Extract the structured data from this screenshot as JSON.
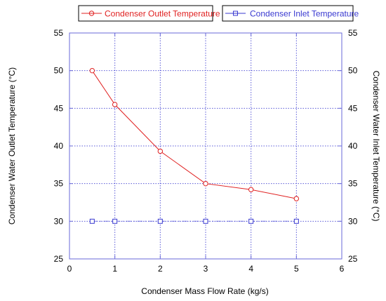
{
  "chart_data": {
    "type": "line",
    "x": [
      0.5,
      1,
      2,
      3,
      4,
      5
    ],
    "series": [
      {
        "name": "Condenser Outlet Temperature",
        "color": "#e02020",
        "marker": "circle",
        "axis": "left",
        "values": [
          50.0,
          45.5,
          39.3,
          35.0,
          34.2,
          33.0
        ]
      },
      {
        "name": "Condenser Inlet Temperature",
        "color": "#3838d0",
        "marker": "square",
        "axis": "right",
        "line_style": "dash-dot",
        "values": [
          30,
          30,
          30,
          30,
          30,
          30
        ]
      }
    ],
    "xlabel": "Condenser Mass Flow Rate (kg/s)",
    "ylabel_left": "Condenser Water Outlet Temperature (°C)",
    "ylabel_right": "Condenser Water Inlet Temperature (°C)",
    "xlim": [
      0,
      6
    ],
    "ylim_left": [
      25,
      55
    ],
    "ylim_right": [
      25,
      55
    ],
    "xticks": [
      "0",
      "1",
      "2",
      "3",
      "4",
      "5",
      "6"
    ],
    "yticks_left": [
      "25",
      "30",
      "35",
      "40",
      "45",
      "50",
      "55"
    ],
    "yticks_right": [
      "25",
      "30",
      "35",
      "40",
      "45",
      "50",
      "55"
    ],
    "grid": true,
    "legend_position": "top",
    "axis_color": "#6a6ad8",
    "grid_color": "#5a5ad8"
  }
}
